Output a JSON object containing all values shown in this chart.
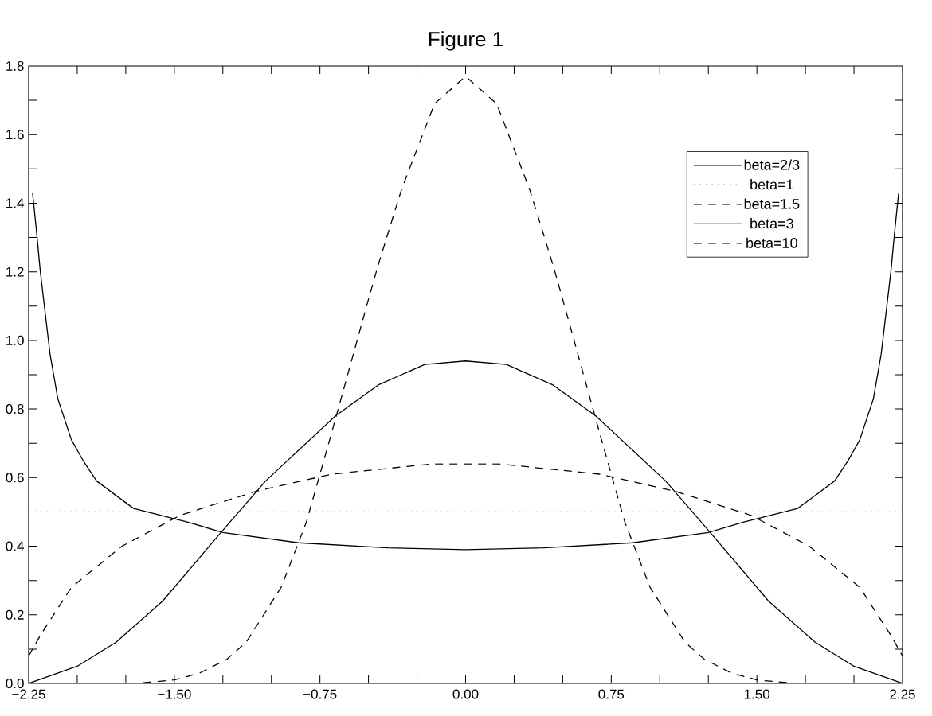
{
  "chart_data": {
    "type": "line",
    "title": "Figure 1",
    "xlim": [
      -2.25,
      2.25
    ],
    "ylim": [
      0,
      1.8
    ],
    "xticks": [
      {
        "value": -2.25,
        "label": "−2.25"
      },
      {
        "value": -2.0,
        "label": null
      },
      {
        "value": -1.75,
        "label": null
      },
      {
        "value": -1.5,
        "label": "−1.50"
      },
      {
        "value": -1.25,
        "label": null
      },
      {
        "value": -1.0,
        "label": null
      },
      {
        "value": -0.75,
        "label": "−0.75"
      },
      {
        "value": -0.5,
        "label": null
      },
      {
        "value": -0.25,
        "label": null
      },
      {
        "value": 0,
        "label": "0.00"
      },
      {
        "value": 0.25,
        "label": null
      },
      {
        "value": 0.5,
        "label": null
      },
      {
        "value": 0.75,
        "label": "0.75"
      },
      {
        "value": 1.0,
        "label": null
      },
      {
        "value": 1.25,
        "label": null
      },
      {
        "value": 1.5,
        "label": "1.50"
      },
      {
        "value": 1.75,
        "label": null
      },
      {
        "value": 2.0,
        "label": null
      },
      {
        "value": 2.25,
        "label": "2.25"
      }
    ],
    "yticks": [
      {
        "value": 0,
        "label": "0.0"
      },
      {
        "value": 0.1,
        "label": null
      },
      {
        "value": 0.2,
        "label": "0.2"
      },
      {
        "value": 0.3,
        "label": null
      },
      {
        "value": 0.4,
        "label": "0.4"
      },
      {
        "value": 0.5,
        "label": null
      },
      {
        "value": 0.6,
        "label": "0.6"
      },
      {
        "value": 0.7,
        "label": null
      },
      {
        "value": 0.8,
        "label": "0.8"
      },
      {
        "value": 0.9,
        "label": null
      },
      {
        "value": 1.0,
        "label": "1.0"
      },
      {
        "value": 1.1,
        "label": null
      },
      {
        "value": 1.2,
        "label": "1.2"
      },
      {
        "value": 1.3,
        "label": null
      },
      {
        "value": 1.4,
        "label": "1.4"
      },
      {
        "value": 1.5,
        "label": null
      },
      {
        "value": 1.6,
        "label": "1.6"
      },
      {
        "value": 1.7,
        "label": null
      },
      {
        "value": 1.8,
        "label": "1.8"
      }
    ],
    "legend": "top right",
    "series": [
      {
        "name": "beta=2/3",
        "color": "#000000",
        "line_style": "solid",
        "x": [
          -2.23,
          -2.21,
          -2.19,
          -2.14,
          -2.1,
          -2.03,
          -1.97,
          -1.9,
          -1.71,
          -1.43,
          -1.25,
          -0.86,
          -0.4,
          0,
          0.4,
          0.86,
          1.25,
          1.43,
          1.71,
          1.9,
          1.97,
          2.03,
          2.1,
          2.14,
          2.19,
          2.21,
          2.23
        ],
        "values": [
          1.43,
          1.32,
          1.2,
          0.96,
          0.83,
          0.71,
          0.65,
          0.59,
          0.51,
          0.47,
          0.44,
          0.41,
          0.395,
          0.39,
          0.395,
          0.41,
          0.44,
          0.47,
          0.51,
          0.59,
          0.65,
          0.71,
          0.83,
          0.96,
          1.2,
          1.32,
          1.43
        ]
      },
      {
        "name": "beta=1",
        "color": "#000000",
        "line_style": "dotted",
        "x": [
          -2.25,
          2.25
        ],
        "values": [
          0.5,
          0.5
        ]
      },
      {
        "name": "beta=1.5",
        "color": "#000000",
        "line_style": "dashed",
        "x": [
          -2.25,
          -2.19,
          -2.03,
          -1.77,
          -1.47,
          -1.08,
          -0.69,
          -0.17,
          0,
          0.17,
          0.69,
          1.08,
          1.47,
          1.77,
          2.03,
          2.19,
          2.25
        ],
        "values": [
          0.08,
          0.14,
          0.28,
          0.4,
          0.49,
          0.56,
          0.61,
          0.64,
          0.64,
          0.64,
          0.61,
          0.56,
          0.49,
          0.4,
          0.28,
          0.14,
          0.08
        ]
      },
      {
        "name": "beta=3",
        "color": "#000000",
        "line_style": "solid",
        "x": [
          -2.25,
          -2.0,
          -1.8,
          -1.56,
          -1.26,
          -1.03,
          -0.67,
          -0.45,
          -0.21,
          0,
          0.21,
          0.45,
          0.67,
          1.03,
          1.26,
          1.56,
          1.8,
          2.0,
          2.25
        ],
        "values": [
          0,
          0.05,
          0.12,
          0.24,
          0.44,
          0.59,
          0.78,
          0.87,
          0.93,
          0.94,
          0.93,
          0.87,
          0.78,
          0.59,
          0.44,
          0.24,
          0.12,
          0.05,
          0
        ]
      },
      {
        "name": "beta=10",
        "color": "#000000",
        "line_style": "dashed",
        "x": [
          -2.25,
          -1.7,
          -1.5,
          -1.37,
          -1.23,
          -1.13,
          -0.95,
          -0.82,
          -0.7,
          -0.5,
          -0.45,
          -0.33,
          -0.16,
          0,
          0.16,
          0.33,
          0.45,
          0.5,
          0.7,
          0.82,
          0.95,
          1.13,
          1.23,
          1.37,
          1.5,
          1.7,
          2.25
        ],
        "values": [
          0,
          0,
          0.01,
          0.03,
          0.07,
          0.12,
          0.28,
          0.47,
          0.71,
          1.12,
          1.22,
          1.44,
          1.69,
          1.77,
          1.69,
          1.44,
          1.22,
          1.12,
          0.71,
          0.47,
          0.28,
          0.12,
          0.07,
          0.03,
          0.01,
          0,
          0
        ]
      }
    ]
  }
}
